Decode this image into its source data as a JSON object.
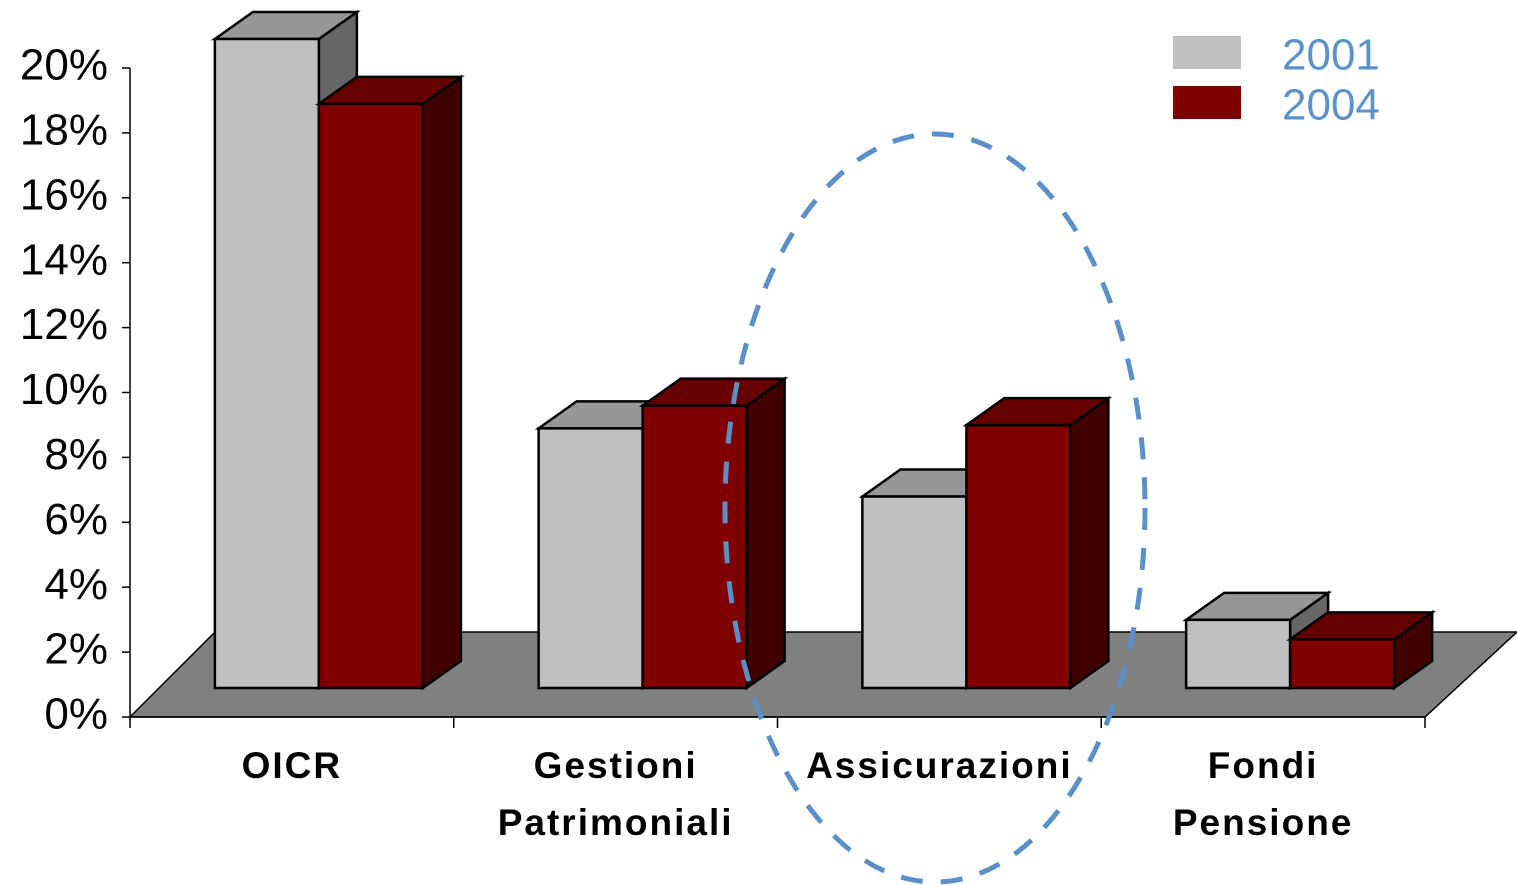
{
  "chart_data": {
    "type": "bar3d",
    "categories": [
      "OICR",
      "Gestioni\nPatrimoniali",
      "Assicurazioni",
      "Fondi\nPensione"
    ],
    "series": [
      {
        "name": "2001",
        "color": "#c0c0c0",
        "values": [
          20,
          8,
          5.9,
          2.1
        ]
      },
      {
        "name": "2004",
        "color": "#800000",
        "values": [
          18,
          8.7,
          8.1,
          1.5
        ]
      }
    ],
    "ylim": [
      0,
      20
    ],
    "yticks": [
      {
        "value": 0,
        "label": "0%"
      },
      {
        "value": 2,
        "label": "2%"
      },
      {
        "value": 4,
        "label": "4%"
      },
      {
        "value": 6,
        "label": "6%"
      },
      {
        "value": 8,
        "label": "8%"
      },
      {
        "value": 10,
        "label": "10%"
      },
      {
        "value": 12,
        "label": "12%"
      },
      {
        "value": 14,
        "label": "14%"
      },
      {
        "value": 16,
        "label": "16%"
      },
      {
        "value": 18,
        "label": "18%"
      },
      {
        "value": 20,
        "label": "20%"
      }
    ],
    "grid": false,
    "legend": "top-right"
  }
}
